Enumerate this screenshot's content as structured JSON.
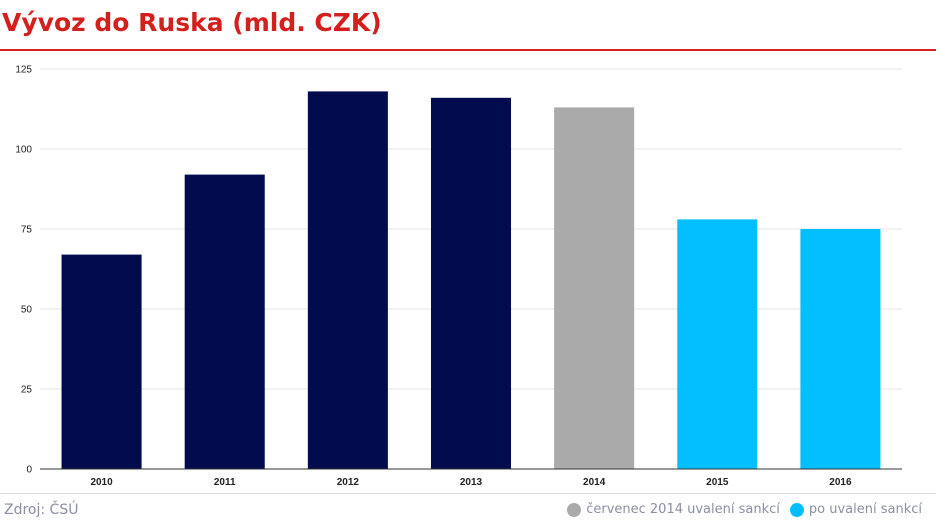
{
  "header": {
    "title": "Vývoz do Ruska (mld. CZK)"
  },
  "footer": {
    "source": "Zdroj: ČSÚ"
  },
  "colors": {
    "accent": "#d3201c",
    "before": "#020b4e",
    "july2014": "#aaaaaa",
    "after": "#03bfff",
    "grid": "#e6e6e6",
    "axis": "#333333"
  },
  "legend": [
    {
      "label": "červenec 2014 uvalení sankcí",
      "color": "#aaaaaa"
    },
    {
      "label": "po uvalení sankcí",
      "color": "#03bfff"
    }
  ],
  "chart_data": {
    "type": "bar",
    "title": "Vývoz do Ruska (mld. CZK)",
    "xlabel": "",
    "ylabel": "",
    "categories": [
      "2010",
      "2011",
      "2012",
      "2013",
      "2014",
      "2015",
      "2016"
    ],
    "values": [
      67,
      92,
      118,
      116,
      113,
      78,
      75
    ],
    "bar_colors": [
      "#020b4e",
      "#020b4e",
      "#020b4e",
      "#020b4e",
      "#aaaaaa",
      "#03bfff",
      "#03bfff"
    ],
    "ylim": [
      0,
      125
    ],
    "yticks": [
      0,
      25,
      50,
      75,
      100,
      125
    ],
    "grid": true,
    "legend_position": "bottom-right"
  }
}
